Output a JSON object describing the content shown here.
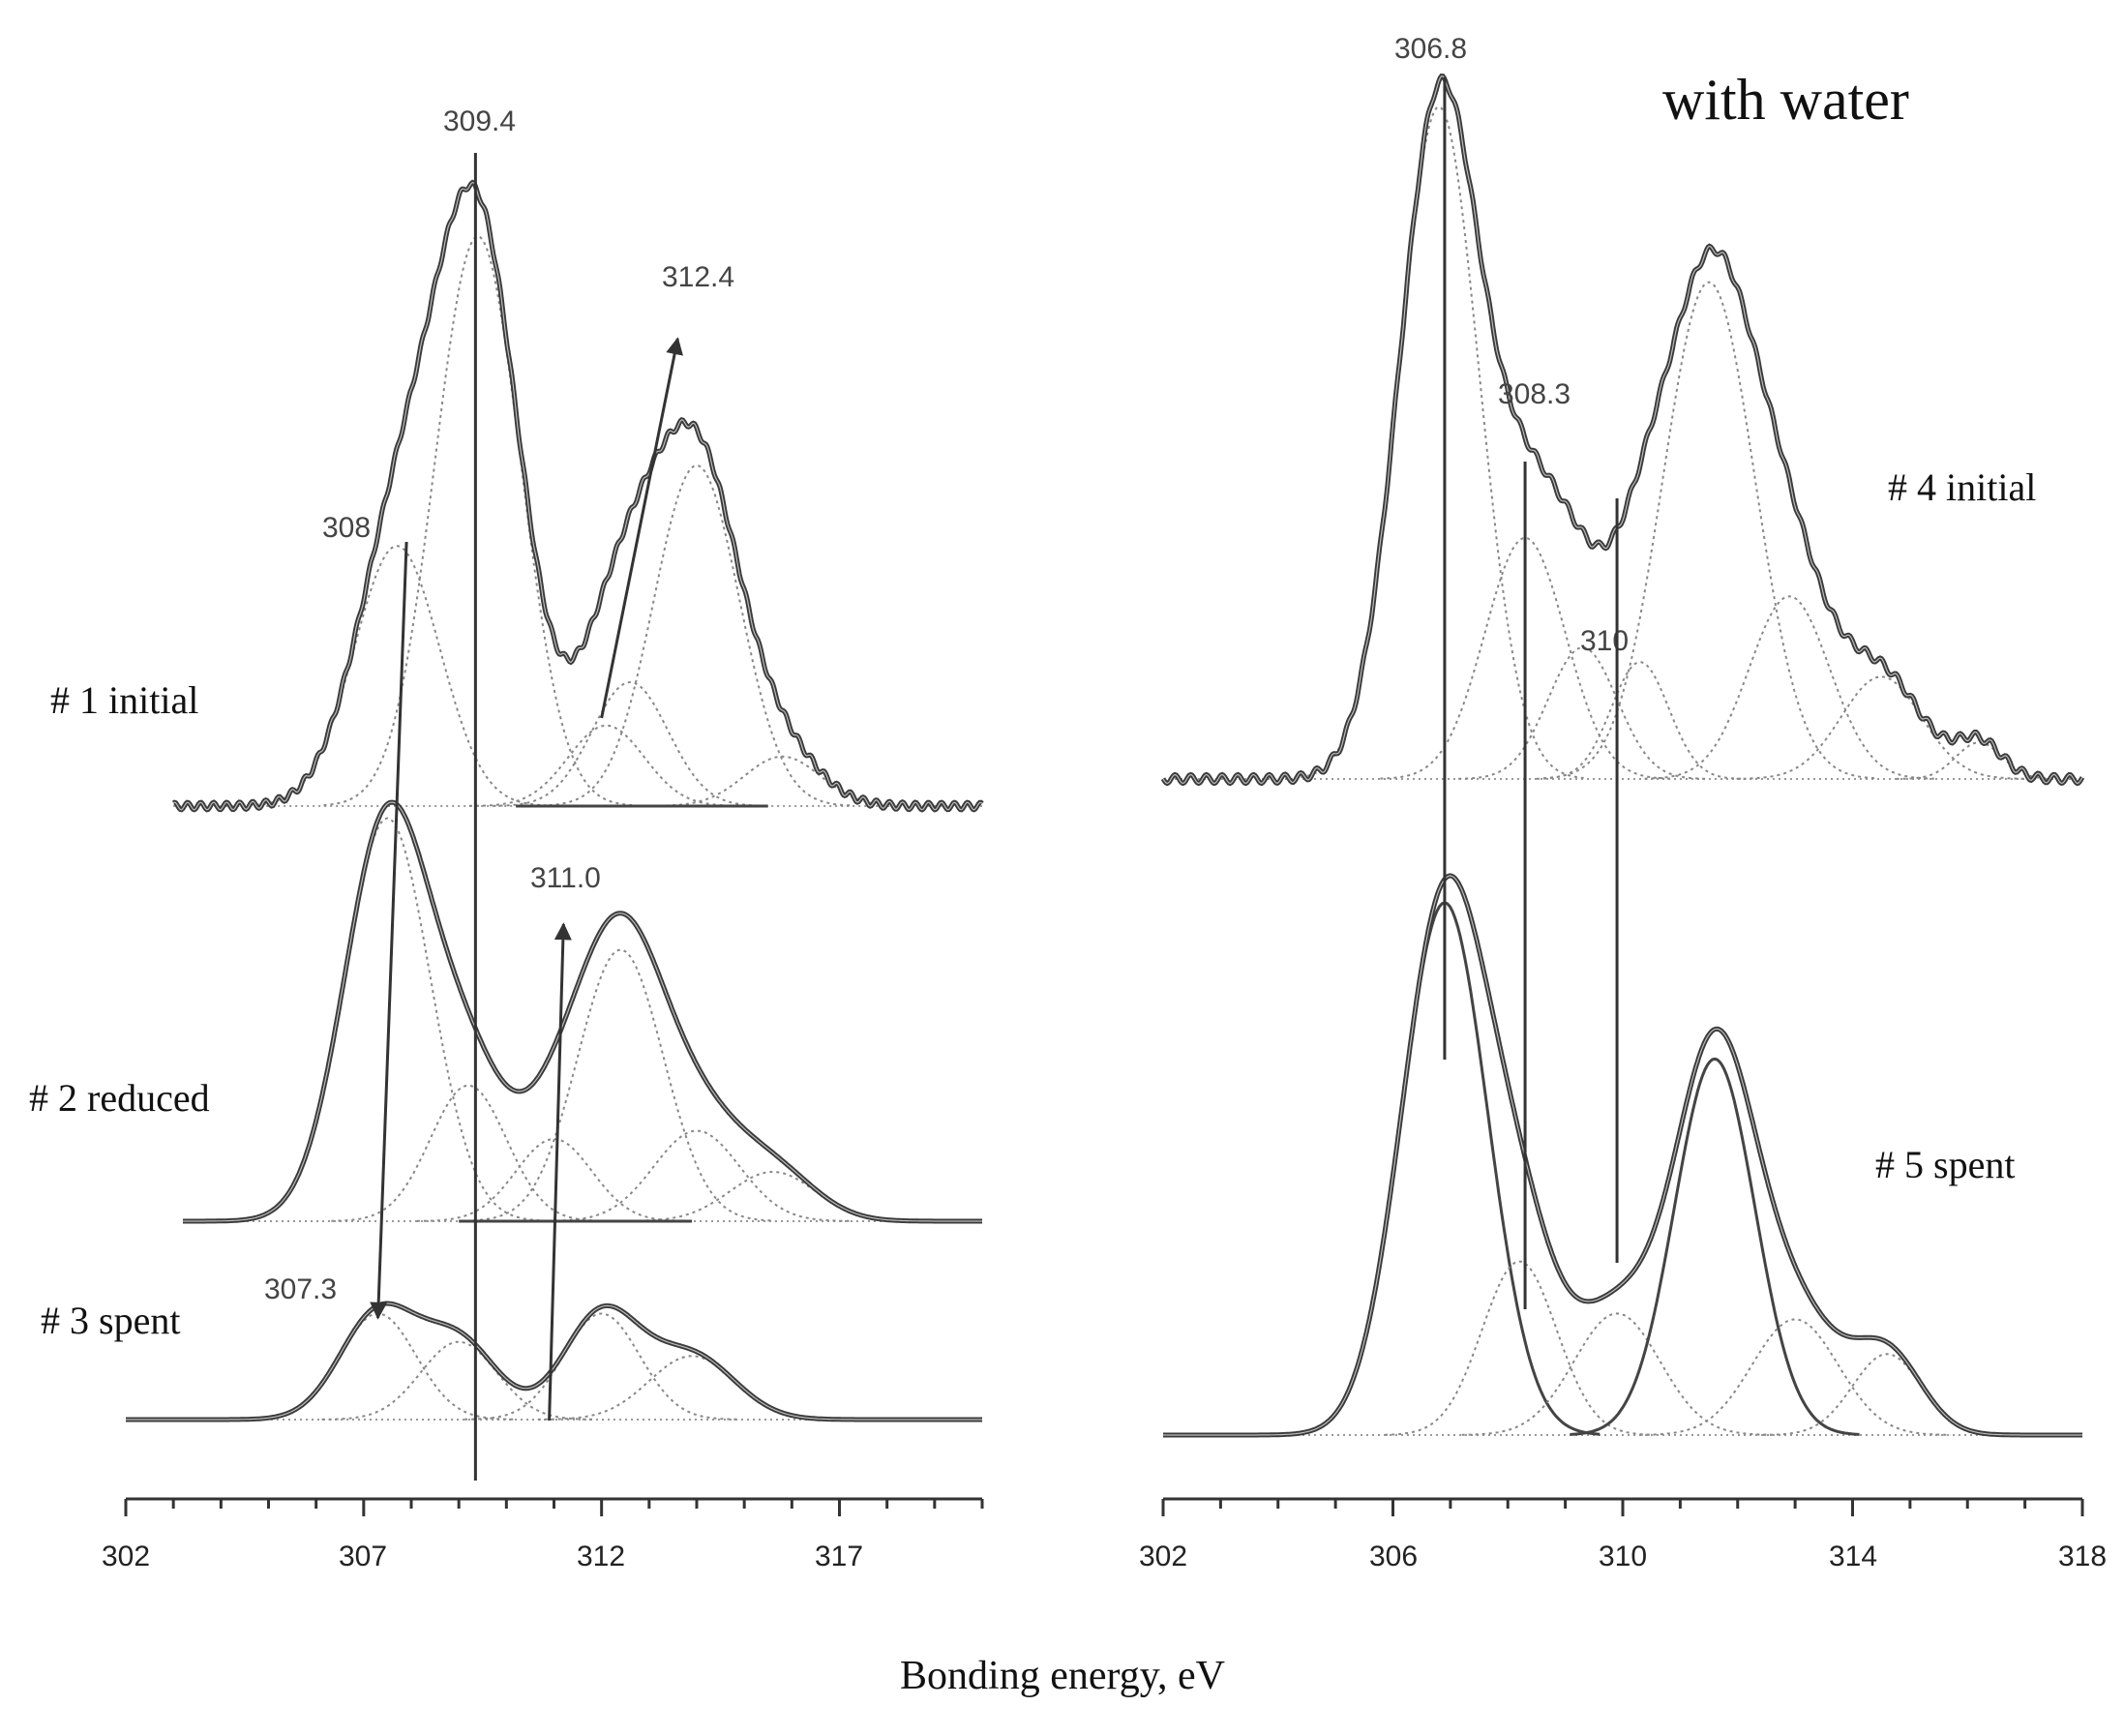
{
  "chart_data": [
    {
      "type": "line",
      "panel": "left",
      "xlabel": "Bonding energy, eV",
      "xlim": [
        302,
        320
      ],
      "x_ticks": [
        "302",
        "307",
        "312",
        "317"
      ],
      "series": [
        {
          "name": "# 1 initial",
          "label": "# 1 initial",
          "envelope_peaks": [
            {
              "x": 309.3,
              "amplitude": 1.0
            },
            {
              "x": 313.7,
              "amplitude": 0.58
            }
          ],
          "components": [
            {
              "center": 307.7,
              "amplitude": 0.42,
              "width": 0.9
            },
            {
              "center": 309.4,
              "amplitude": 0.92,
              "width": 0.9
            },
            {
              "center": 312.1,
              "amplitude": 0.13,
              "width": 0.8
            },
            {
              "center": 312.6,
              "amplitude": 0.2,
              "width": 0.8
            },
            {
              "center": 314.0,
              "amplitude": 0.55,
              "width": 0.9
            },
            {
              "center": 315.8,
              "amplitude": 0.08,
              "width": 0.8
            }
          ]
        },
        {
          "name": "# 2 reduced",
          "label": "# 2 reduced",
          "envelope_peaks": [
            {
              "x": 307.5,
              "amplitude": 1.0
            },
            {
              "x": 312.4,
              "amplitude": 0.72
            }
          ],
          "components": [
            {
              "center": 307.5,
              "amplitude": 0.98,
              "width": 0.9
            },
            {
              "center": 309.2,
              "amplitude": 0.33,
              "width": 0.8
            },
            {
              "center": 311.0,
              "amplitude": 0.2,
              "width": 0.8
            },
            {
              "center": 312.4,
              "amplitude": 0.66,
              "width": 0.9
            },
            {
              "center": 314.0,
              "amplitude": 0.22,
              "width": 0.9
            },
            {
              "center": 315.6,
              "amplitude": 0.12,
              "width": 0.9
            }
          ]
        },
        {
          "name": "# 3 spent",
          "label": "# 3 spent",
          "envelope_peaks": [
            {
              "x": 307.3,
              "amplitude": 0.33
            },
            {
              "x": 312.0,
              "amplitude": 0.33
            }
          ],
          "components": [
            {
              "center": 307.3,
              "amplitude": 0.3,
              "width": 0.8
            },
            {
              "center": 309.0,
              "amplitude": 0.22,
              "width": 0.8
            },
            {
              "center": 312.0,
              "amplitude": 0.3,
              "width": 0.8
            },
            {
              "center": 313.9,
              "amplitude": 0.18,
              "width": 0.9
            }
          ]
        }
      ],
      "annotations": [
        "309.4",
        "312.4",
        "308",
        "311.0",
        "307.3"
      ]
    },
    {
      "type": "line",
      "panel": "right",
      "title": "with water",
      "xlabel": "Bonding energy, eV",
      "xlim": [
        302,
        318
      ],
      "x_ticks": [
        "302",
        "306",
        "310",
        "314",
        "318"
      ],
      "series": [
        {
          "name": "# 4 initial",
          "label": "# 4 initial",
          "envelope_peaks": [
            {
              "x": 306.9,
              "amplitude": 1.0
            },
            {
              "x": 311.5,
              "amplitude": 0.77
            }
          ],
          "components": [
            {
              "center": 306.8,
              "amplitude": 0.92,
              "width": 0.7
            },
            {
              "center": 308.3,
              "amplitude": 0.33,
              "width": 0.7
            },
            {
              "center": 309.3,
              "amplitude": 0.18,
              "width": 0.6
            },
            {
              "center": 310.3,
              "amplitude": 0.16,
              "width": 0.5
            },
            {
              "center": 311.5,
              "amplitude": 0.68,
              "width": 0.8
            },
            {
              "center": 312.9,
              "amplitude": 0.25,
              "width": 0.7
            },
            {
              "center": 314.5,
              "amplitude": 0.14,
              "width": 0.7
            },
            {
              "center": 316.2,
              "amplitude": 0.05,
              "width": 0.4
            }
          ]
        },
        {
          "name": "# 5 spent",
          "label": "# 5 spent",
          "envelope_peaks": [
            {
              "x": 307.0,
              "amplitude": 1.0
            },
            {
              "x": 311.7,
              "amplitude": 0.71
            }
          ],
          "components": [
            {
              "center": 306.9,
              "amplitude": 0.92,
              "width": 0.75
            },
            {
              "center": 308.2,
              "amplitude": 0.3,
              "width": 0.65
            },
            {
              "center": 309.9,
              "amplitude": 0.21,
              "width": 0.75
            },
            {
              "center": 311.6,
              "amplitude": 0.65,
              "width": 0.7
            },
            {
              "center": 313.0,
              "amplitude": 0.2,
              "width": 0.75
            },
            {
              "center": 314.6,
              "amplitude": 0.14,
              "width": 0.6
            }
          ]
        }
      ],
      "annotations": [
        "306.8",
        "308.3",
        "310"
      ]
    }
  ]
}
